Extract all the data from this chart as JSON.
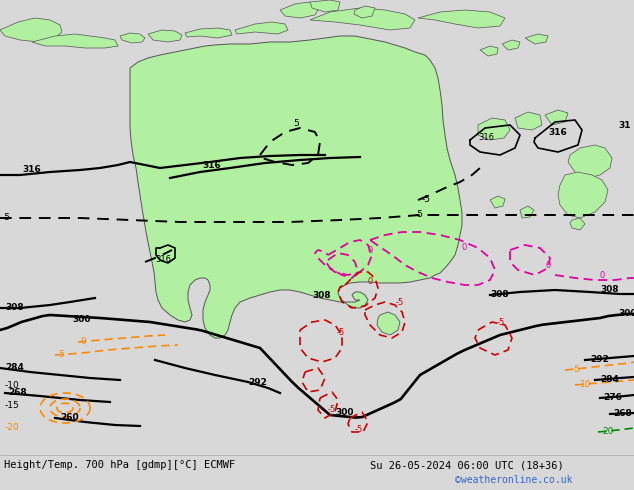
{
  "title_left": "Height/Temp. 700 hPa [gdmp][°C] ECMWF",
  "title_right": "Su 26-05-2024 06:00 UTC (18+36)",
  "watermark": "©weatheronline.co.uk",
  "bg_color": "#d8d8d8",
  "land_color": "#b0f0a0",
  "border_color": "#555555",
  "fig_width": 6.34,
  "fig_height": 4.9,
  "dpi": 100
}
